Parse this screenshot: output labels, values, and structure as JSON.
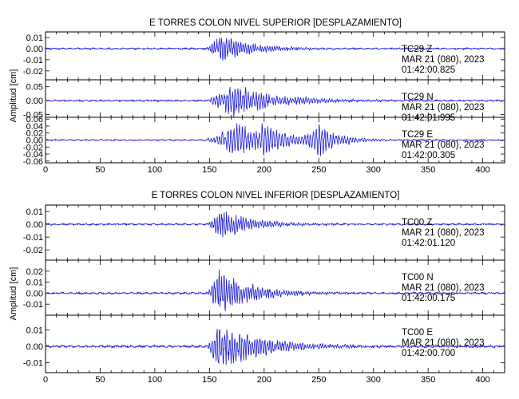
{
  "colors": {
    "trace": "#1a1adb",
    "axis": "#000000",
    "background": "#ffffff"
  },
  "chart_data": [
    {
      "type": "line",
      "title": "E TORRES COLON NIVEL SUPERIOR [DESPLAZAMIENTO]",
      "ylabel": "Amplitud [cm]",
      "xlim": [
        0,
        420
      ],
      "x_ticks": [
        0,
        50,
        100,
        150,
        200,
        250,
        300,
        350,
        400
      ],
      "panels": [
        {
          "station": "TC29   Z",
          "date": "MAR 21 (080), 2023",
          "time": "01:42:00.825",
          "ylim": [
            -0.028,
            0.015
          ],
          "y_ticks": [
            "0.01",
            "0.00",
            "-0.01",
            "-0.02"
          ],
          "y_tick_values": [
            0.01,
            0.0,
            -0.01,
            -0.02
          ],
          "x_ticks_labeled": false,
          "noise_amp": 0.0005,
          "events": [
            {
              "t_start": 147,
              "t_peak": 160,
              "decay": 30,
              "amp": 0.012,
              "period": 2.2
            }
          ]
        },
        {
          "station": "TC29   N",
          "date": "MAR 21 (080), 2023",
          "time": "01:42:01.995",
          "ylim": [
            -0.06,
            0.075
          ],
          "y_ticks": [
            "0.05",
            "0.00",
            "-0.05"
          ],
          "y_tick_values": [
            0.05,
            0.0,
            -0.05
          ],
          "x_ticks_labeled": false,
          "noise_amp": 0.002,
          "events": [
            {
              "t_start": 147,
              "t_peak": 172,
              "decay": 40,
              "amp": 0.055,
              "period": 2.4
            }
          ]
        },
        {
          "station": "TC29   E",
          "date": "MAR 21 (080), 2023",
          "time": "01:42:00.305",
          "ylim": [
            -0.065,
            0.065
          ],
          "y_ticks": [
            "0.06",
            "0.04",
            "0.02",
            "0.00",
            "-0.02",
            "-0.04",
            "-0.06"
          ],
          "y_tick_values": [
            0.06,
            0.04,
            0.02,
            0.0,
            -0.02,
            -0.04,
            -0.06
          ],
          "x_ticks_labeled": true,
          "noise_amp": 0.0015,
          "events": [
            {
              "t_start": 147,
              "t_peak": 175,
              "decay": 30,
              "amp": 0.045,
              "period": 2.6
            },
            {
              "t_start": 195,
              "t_peak": 198,
              "decay": 20,
              "amp": 0.035,
              "period": 2.6
            },
            {
              "t_start": 235,
              "t_peak": 250,
              "decay": 18,
              "amp": 0.04,
              "period": 2.6
            }
          ]
        }
      ]
    },
    {
      "type": "line",
      "title": "E TORRES COLON NIVEL INFERIOR [DESPLAZAMIENTO]",
      "ylabel": "Amplitud [cm]",
      "xlim": [
        0,
        420
      ],
      "x_ticks": [
        0,
        50,
        100,
        150,
        200,
        250,
        300,
        350,
        400
      ],
      "panels": [
        {
          "station": "TC00   Z",
          "date": "MAR 21 (080), 2023",
          "time": "01:42:01.120",
          "ylim": [
            -0.028,
            0.015
          ],
          "y_ticks": [
            "0.01",
            "0.00",
            "-0.01",
            "-0.02"
          ],
          "y_tick_values": [
            0.01,
            0.0,
            -0.01,
            -0.02
          ],
          "x_ticks_labeled": false,
          "noise_amp": 0.0005,
          "events": [
            {
              "t_start": 148,
              "t_peak": 160,
              "decay": 28,
              "amp": 0.012,
              "period": 2.2
            }
          ]
        },
        {
          "station": "TC00   N",
          "date": "MAR 21 (080), 2023",
          "time": "01:42:00.175",
          "ylim": [
            -0.02,
            0.03
          ],
          "y_ticks": [
            "0.02",
            "0.01",
            "0.00",
            "-0.01"
          ],
          "y_tick_values": [
            0.02,
            0.01,
            0.0,
            -0.01
          ],
          "x_ticks_labeled": false,
          "noise_amp": 0.0006,
          "events": [
            {
              "t_start": 148,
              "t_peak": 158,
              "decay": 30,
              "amp": 0.02,
              "period": 2.2
            }
          ]
        },
        {
          "station": "TC00   E",
          "date": "MAR 21 (080), 2023",
          "time": "01:42:00.700",
          "ylim": [
            -0.016,
            0.019
          ],
          "y_ticks": [
            "0.01",
            "0.00",
            "-0.01"
          ],
          "y_tick_values": [
            0.01,
            0.0,
            -0.01
          ],
          "x_ticks_labeled": true,
          "noise_amp": 0.0005,
          "events": [
            {
              "t_start": 148,
              "t_peak": 158,
              "decay": 40,
              "amp": 0.014,
              "period": 2.3
            }
          ]
        }
      ]
    }
  ]
}
